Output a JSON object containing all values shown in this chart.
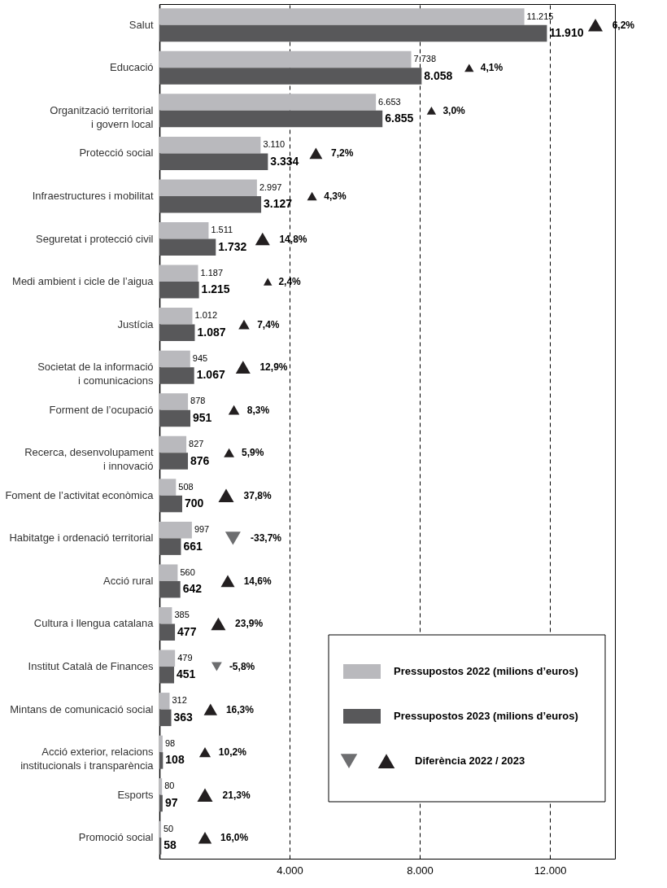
{
  "chart_data": {
    "type": "bar",
    "orientation": "horizontal",
    "categories": [
      "Salut",
      "Educació",
      "Organització territorial\ni govern local",
      "Protecció social",
      "Infraestructures i mobilitat",
      "Seguretat i protecció civil",
      "Medi ambient i cicle de l’aigua",
      "Justícia",
      "Societat de la informació\ni comunicacions",
      "Forment de l’ocupació",
      "Recerca, desenvolupament\ni innovació",
      "Foment de l’activitat econòmica",
      "Habitatge i ordenació territorial",
      "Acció rural",
      "Cultura i llengua catalana",
      "Institut Català de Finances",
      "Mintans de comunicació social",
      "Acció exterior, relacions\ninstitucionals i transparència",
      "Esports",
      "Promoció social"
    ],
    "series": [
      {
        "name": "Pressupostos 2022 (milions d’euros)",
        "color": "#b9b9bd",
        "values": [
          11215,
          7738,
          6653,
          3110,
          2997,
          1511,
          1187,
          1012,
          945,
          878,
          827,
          508,
          997,
          560,
          385,
          479,
          312,
          98,
          80,
          50
        ],
        "value_labels": [
          "11.215",
          "7.738",
          "6.653",
          "3.110",
          "2.997",
          "1.511",
          "1.187",
          "1.012",
          "945",
          "878",
          "827",
          "508",
          "997",
          "560",
          "385",
          "479",
          "312",
          "98",
          "80",
          "50"
        ]
      },
      {
        "name": "Pressupostos 2023 (milions d’euros)",
        "color": "#58585a",
        "values": [
          11910,
          8058,
          6855,
          3334,
          3127,
          1732,
          1215,
          1087,
          1067,
          951,
          876,
          700,
          661,
          642,
          477,
          451,
          363,
          108,
          97,
          58
        ],
        "value_labels": [
          "11.910",
          "8.058",
          "6.855",
          "3.334",
          "3.127",
          "1.732",
          "1.215",
          "1.087",
          "1.067",
          "951",
          "876",
          "700",
          "661",
          "642",
          "477",
          "451",
          "363",
          "108",
          "97",
          "58"
        ]
      },
      {
        "name": "Diferència 2022 / 2023",
        "type": "scatter",
        "marker": "triangle",
        "color": "#231f20",
        "values": [
          13400,
          9520,
          8360,
          4810,
          4690,
          3170,
          3330,
          2600,
          2570,
          2290,
          2140,
          2050,
          null,
          2100,
          1810,
          null,
          1570,
          1400,
          1400,
          1400
        ],
        "sizes": [
          0.9,
          0.35,
          0.35,
          0.7,
          0.4,
          0.9,
          0.3,
          0.5,
          0.9,
          0.5,
          0.45,
          1,
          null,
          0.8,
          0.9,
          null,
          0.75,
          0.55,
          1,
          0.75
        ]
      },
      {
        "type": "scatter",
        "marker": "triangle-down",
        "color": "#6d6e70",
        "values": [
          null,
          null,
          null,
          null,
          null,
          null,
          null,
          null,
          null,
          null,
          null,
          null,
          2260,
          null,
          null,
          1760,
          null,
          null,
          null,
          null
        ],
        "sizes": [
          null,
          null,
          null,
          null,
          null,
          null,
          null,
          null,
          null,
          null,
          null,
          null,
          1,
          null,
          null,
          0.45,
          null,
          null,
          null,
          null
        ]
      }
    ],
    "annotations": [
      {
        "text": "6,2%",
        "x": 13400,
        "y": "Salut"
      },
      {
        "text": "4,1%",
        "x": 9520,
        "y": "Educació"
      },
      {
        "text": "3,0%",
        "x": 8360,
        "y": "Organització territorial\ni govern local"
      },
      {
        "text": "7,2%",
        "x": 4810,
        "y": "Protecció social"
      },
      {
        "text": "4,3%",
        "x": 4690,
        "y": "Infraestructures i mobilitat"
      },
      {
        "text": "14,8%",
        "x": 3170,
        "y": "Seguretat i protecció civil"
      },
      {
        "text": "2,4%",
        "x": 3330,
        "y": "Medi ambient i cicle de l’aigua"
      },
      {
        "text": "7,4%",
        "x": 2600,
        "y": "Justícia"
      },
      {
        "text": "12,9%",
        "x": 2570,
        "y": "Societat de la informació\ni comunicacions"
      },
      {
        "text": "8,3%",
        "x": 2290,
        "y": "Forment de l’ocupació"
      },
      {
        "text": "5,9%",
        "x": 2140,
        "y": "Recerca, desenvolupament\ni innovació"
      },
      {
        "text": "37,8%",
        "x": 2050,
        "y": "Foment de l’activitat econòmica"
      },
      {
        "text": "-33,7%",
        "x": 2260,
        "y": "Habitatge i ordenació territorial"
      },
      {
        "text": "14,6%",
        "x": 2100,
        "y": "Acció rural"
      },
      {
        "text": "23,9%",
        "x": 1810,
        "y": "Cultura i llengua catalana"
      },
      {
        "text": "-5,8%",
        "x": 1760,
        "y": "Institut Català de Finances"
      },
      {
        "text": "16,3%",
        "x": 1570,
        "y": "Mintans de comunicació social"
      },
      {
        "text": "10,2%",
        "x": 1400,
        "y": "Acció exterior, relacions\ninstitucionals i transparència"
      },
      {
        "text": "21,3%",
        "x": 1400,
        "y": "Esports"
      },
      {
        "text": "16,0%",
        "x": 1400,
        "y": "Promoció social"
      }
    ],
    "xlim": [
      0,
      14000
    ],
    "xticks": [
      {
        "value": 4000,
        "label": "4.000"
      },
      {
        "value": 8000,
        "label": "8.000"
      },
      {
        "value": 12000,
        "label": "12.000"
      }
    ],
    "grid": "x",
    "legend": "bottom right"
  }
}
